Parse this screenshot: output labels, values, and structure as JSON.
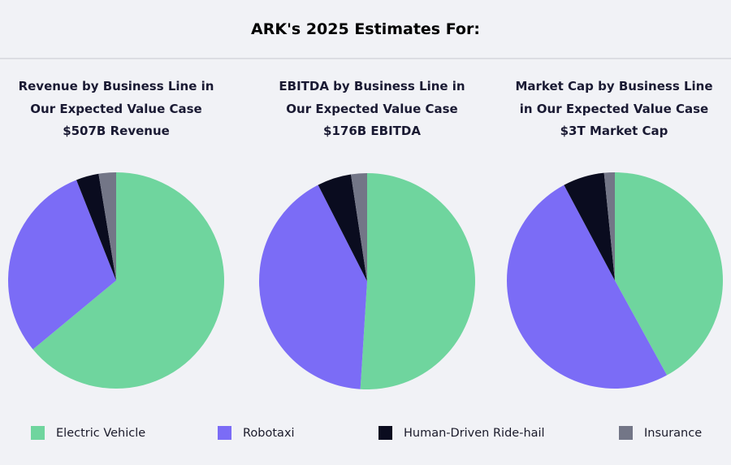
{
  "header": {
    "title": "ARK's 2025 Estimates For:"
  },
  "colors": {
    "Electric Vehicle": "#6fd59e",
    "Robotaxi": "#7b6cf6",
    "Human-Driven Ride-hail": "#0a0c1f",
    "Insurance": "#737687"
  },
  "legend": [
    {
      "label": "Electric Vehicle",
      "color": "#6fd59e"
    },
    {
      "label": "Robotaxi",
      "color": "#7b6cf6"
    },
    {
      "label": "Human-Driven Ride-hail",
      "color": "#0a0c1f"
    },
    {
      "label": "Insurance",
      "color": "#737687"
    }
  ],
  "chart_data": [
    {
      "type": "pie",
      "title": [
        "Revenue by Business Line in",
        "Our Expected Value Case",
        "$507B Revenue"
      ],
      "categories": [
        "Electric Vehicle",
        "Robotaxi",
        "Human-Driven Ride-hail",
        "Insurance"
      ],
      "values": [
        64,
        30,
        3.4,
        2.6
      ],
      "unit": "% of total",
      "legend_position": "bottom"
    },
    {
      "type": "pie",
      "title": [
        "EBITDA by Business Line in",
        "Our Expected Value Case",
        "$176B EBITDA"
      ],
      "categories": [
        "Electric Vehicle",
        "Robotaxi",
        "Human-Driven Ride-hail",
        "Insurance"
      ],
      "values": [
        51,
        41.5,
        5.1,
        2.4
      ],
      "unit": "% of total",
      "legend_position": "bottom"
    },
    {
      "type": "pie",
      "title": [
        "Market Cap by Business Line",
        "in Our Expected Value Case",
        "$3T Market Cap"
      ],
      "categories": [
        "Electric Vehicle",
        "Robotaxi",
        "Human-Driven Ride-hail",
        "Insurance"
      ],
      "values": [
        42,
        50.2,
        6.2,
        1.6
      ],
      "unit": "% of total",
      "legend_position": "bottom"
    }
  ]
}
